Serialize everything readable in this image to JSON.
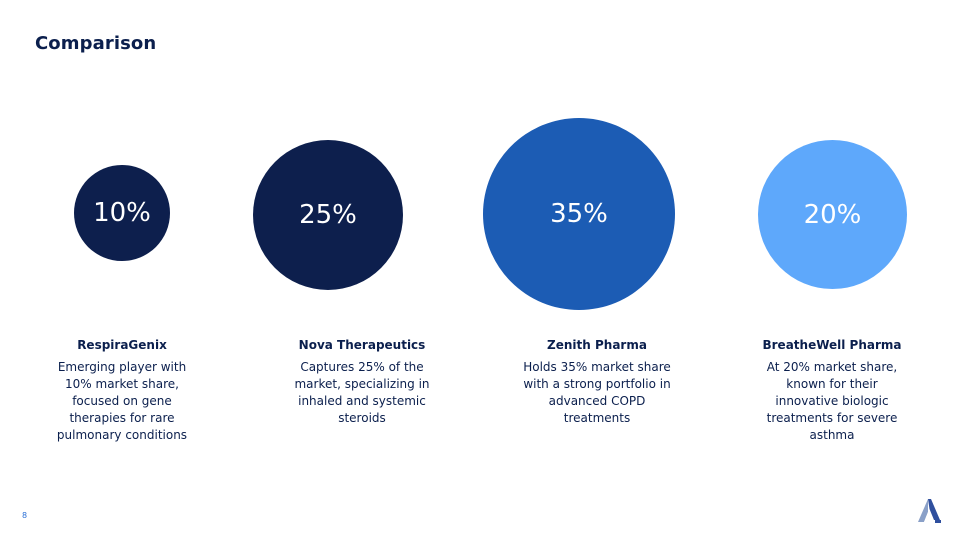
{
  "slide": {
    "title": "Comparison",
    "page_number": "8"
  },
  "companies": [
    {
      "share": "10%",
      "name": "RespiraGenix",
      "description": "Emerging player with 10% market share, focused on gene therapies for rare pulmonary conditions",
      "color": "#0d1f4d"
    },
    {
      "share": "25%",
      "name": "Nova Therapeutics",
      "description": "Captures 25% of the market, specializing in inhaled and systemic steroids",
      "color": "#0d1f4d"
    },
    {
      "share": "35%",
      "name": "Zenith Pharma",
      "description": "Holds 35% market share with a strong portfolio in advanced COPD treatments",
      "color": "#1c5cb4"
    },
    {
      "share": "20%",
      "name": "BreatheWell Pharma",
      "description": "At 20% market share, known for their innovative biologic treatments for severe asthma",
      "color": "#5ea8fb"
    }
  ],
  "logo": {
    "icon": "company-logo-icon",
    "colors": [
      "#8aa0c8",
      "#2f4f9e"
    ]
  }
}
